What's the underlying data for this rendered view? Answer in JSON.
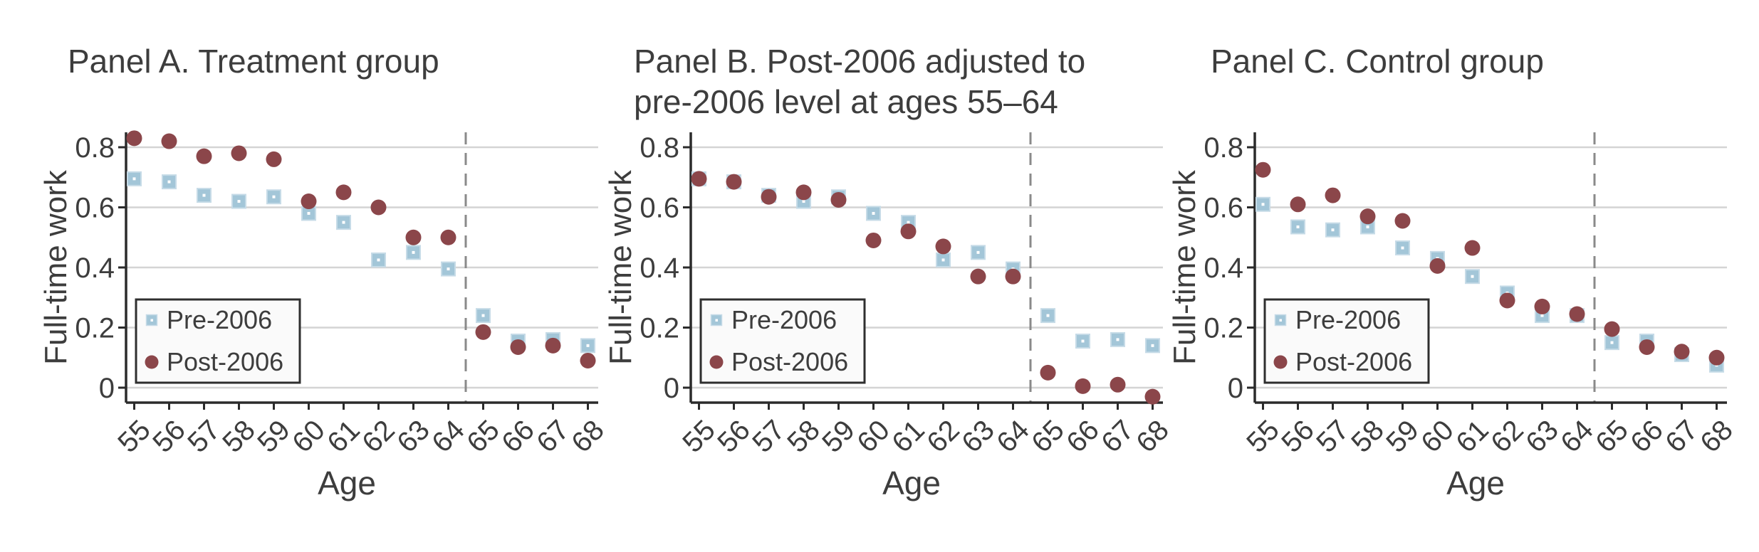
{
  "figure": {
    "background": "#ffffff",
    "text_color": "#3d3d3d",
    "colors": {
      "grid": "#d4d4d4",
      "axis": "#2b2b2b",
      "divider": "#8a8a8a",
      "pre_marker": "#a3c6d8",
      "pre_marker_edge": "#c6dbe7",
      "pre_marker_dot": "#ffffff",
      "post_marker": "#8b464a",
      "legend_bg": "#fafafa",
      "legend_border": "#2f2f2f"
    },
    "panels": [
      {
        "title_lines": [
          "Panel A. Treatment group",
          ""
        ]
      },
      {
        "title_lines": [
          "Panel B. Post-2006 adjusted to",
          "pre-2006 level at ages 55–64"
        ]
      },
      {
        "title_lines": [
          "Panel C. Control group",
          ""
        ]
      }
    ]
  },
  "chart_data": [
    {
      "type": "scatter",
      "title": "Panel A. Treatment group",
      "xlabel": "Age",
      "ylabel": "Full-time work",
      "x": [
        55,
        56,
        57,
        58,
        59,
        60,
        61,
        62,
        63,
        64,
        65,
        66,
        67,
        68
      ],
      "series": [
        {
          "name": "Pre-2006",
          "marker": "square",
          "color": "#a3c6d8",
          "values": [
            0.695,
            0.685,
            0.64,
            0.62,
            0.635,
            0.58,
            0.55,
            0.425,
            0.45,
            0.395,
            0.24,
            0.155,
            0.16,
            0.14
          ]
        },
        {
          "name": "Post-2006",
          "marker": "circle",
          "color": "#8b464a",
          "values": [
            0.83,
            0.82,
            0.77,
            0.78,
            0.76,
            0.62,
            0.65,
            0.6,
            0.5,
            0.5,
            0.185,
            0.135,
            0.14,
            0.09
          ]
        }
      ],
      "yticks": [
        0,
        0.2,
        0.4,
        0.6,
        0.8
      ],
      "ytick_labels": [
        "0",
        "0.2",
        "0.4",
        "0.6",
        "0.8"
      ],
      "ylim": [
        -0.05,
        0.85
      ],
      "vline_x": 64.5,
      "grid": true,
      "legend_position": "lower-left"
    },
    {
      "type": "scatter",
      "title": "Panel B. Post-2006 adjusted to pre-2006 level at ages 55–64",
      "xlabel": "Age",
      "ylabel": "Full-time work",
      "x": [
        55,
        56,
        57,
        58,
        59,
        60,
        61,
        62,
        63,
        64,
        65,
        66,
        67,
        68
      ],
      "series": [
        {
          "name": "Pre-2006",
          "marker": "square",
          "color": "#a3c6d8",
          "values": [
            0.695,
            0.685,
            0.64,
            0.62,
            0.635,
            0.58,
            0.55,
            0.425,
            0.45,
            0.395,
            0.24,
            0.155,
            0.16,
            0.14
          ]
        },
        {
          "name": "Post-2006",
          "marker": "circle",
          "color": "#8b464a",
          "values": [
            0.695,
            0.685,
            0.635,
            0.65,
            0.625,
            0.49,
            0.52,
            0.47,
            0.37,
            0.37,
            0.05,
            0.005,
            0.01,
            -0.03
          ]
        }
      ],
      "yticks": [
        0,
        0.2,
        0.4,
        0.6,
        0.8
      ],
      "ytick_labels": [
        "0",
        "0.2",
        "0.4",
        "0.6",
        "0.8"
      ],
      "ylim": [
        -0.05,
        0.85
      ],
      "vline_x": 64.5,
      "grid": true,
      "legend_position": "lower-left"
    },
    {
      "type": "scatter",
      "title": "Panel C. Control group",
      "xlabel": "Age",
      "ylabel": "Full-time work",
      "x": [
        55,
        56,
        57,
        58,
        59,
        60,
        61,
        62,
        63,
        64,
        65,
        66,
        67,
        68
      ],
      "series": [
        {
          "name": "Pre-2006",
          "marker": "square",
          "color": "#a3c6d8",
          "values": [
            0.61,
            0.535,
            0.525,
            0.535,
            0.465,
            0.43,
            0.37,
            0.315,
            0.24,
            0.24,
            0.15,
            0.155,
            0.11,
            0.075
          ]
        },
        {
          "name": "Post-2006",
          "marker": "circle",
          "color": "#8b464a",
          "values": [
            0.725,
            0.61,
            0.64,
            0.57,
            0.555,
            0.405,
            0.465,
            0.29,
            0.27,
            0.245,
            0.195,
            0.135,
            0.12,
            0.1
          ]
        }
      ],
      "yticks": [
        0,
        0.2,
        0.4,
        0.6,
        0.8
      ],
      "ytick_labels": [
        "0",
        "0.2",
        "0.4",
        "0.6",
        "0.8"
      ],
      "ylim": [
        -0.05,
        0.85
      ],
      "vline_x": 64.5,
      "grid": true,
      "legend_position": "lower-left"
    }
  ]
}
